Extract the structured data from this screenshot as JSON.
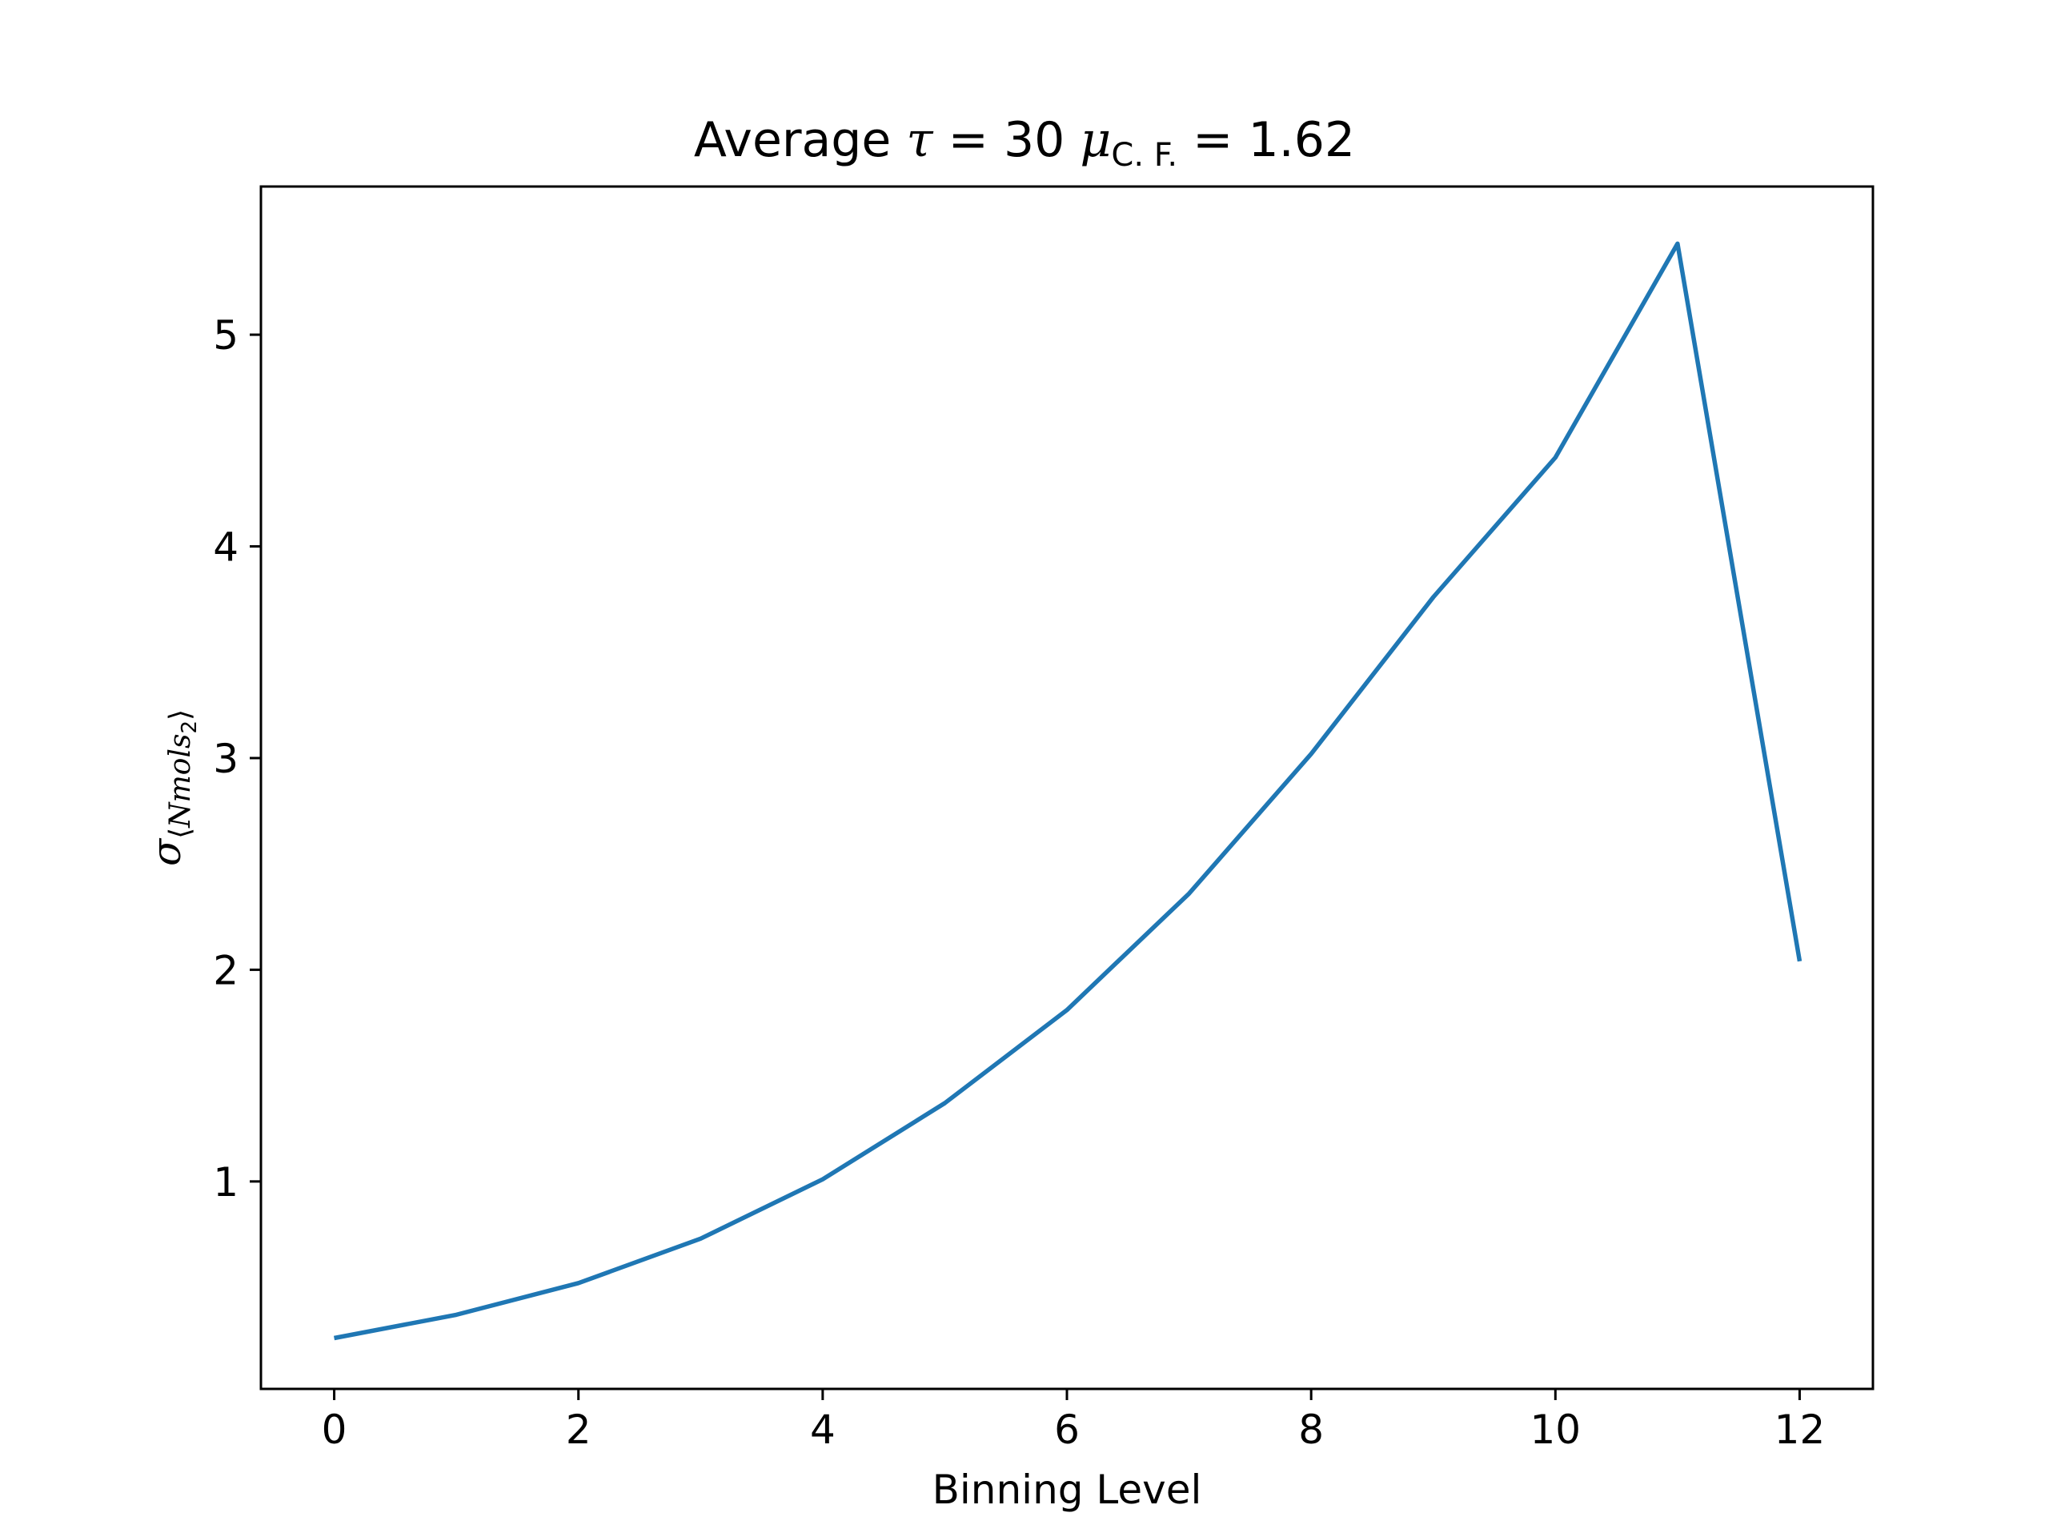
{
  "chart_data": {
    "type": "line",
    "title": {
      "prefix": "Average ",
      "tau_symbol": "τ",
      "tau_eq": " = 30 ",
      "mu_symbol": "μ",
      "mu_sub": "C. F.",
      "mu_eq": " = 1.62"
    },
    "xlabel": "Binning Level",
    "ylabel": {
      "symbol": "σ",
      "sub_open": "⟨",
      "sub_text": "Nmols",
      "sub_sub": "2",
      "sub_close": "⟩"
    },
    "xlim": [
      -0.6,
      12.6
    ],
    "ylim": [
      0.02,
      5.7
    ],
    "xticks": [
      0,
      2,
      4,
      6,
      8,
      10,
      12
    ],
    "xtick_labels": [
      "0",
      "2",
      "4",
      "6",
      "8",
      "10",
      "12"
    ],
    "yticks": [
      1,
      2,
      3,
      4,
      5
    ],
    "ytick_labels": [
      "1",
      "2",
      "3",
      "4",
      "5"
    ],
    "grid": false,
    "series": [
      {
        "name": "sigma",
        "color": "#1f77b4",
        "x": [
          0,
          1,
          2,
          3,
          4,
          5,
          6,
          7,
          8,
          9,
          10,
          11,
          12
        ],
        "y": [
          0.26,
          0.37,
          0.52,
          0.73,
          1.01,
          1.37,
          1.81,
          2.36,
          3.02,
          3.76,
          4.42,
          5.43,
          2.04
        ]
      }
    ]
  }
}
